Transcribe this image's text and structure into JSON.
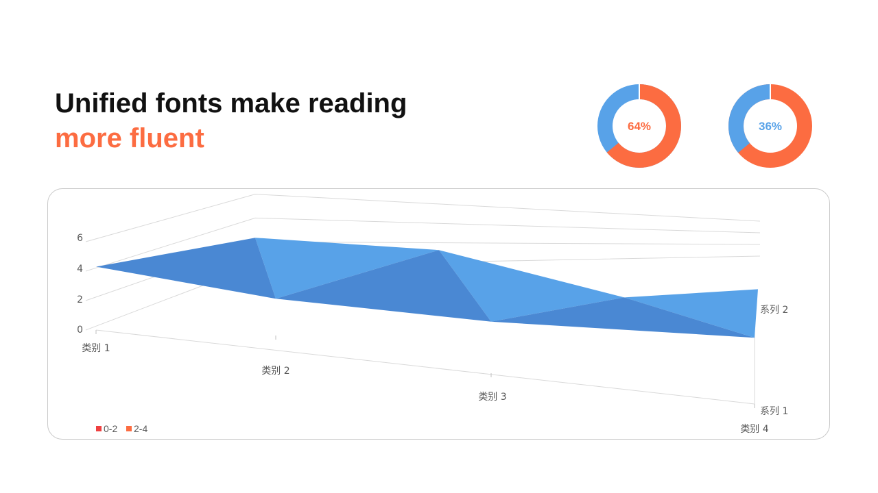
{
  "title": {
    "line1": "Unified fonts make reading",
    "line2": "more fluent"
  },
  "colors": {
    "accent_orange": "#fc6c41",
    "accent_blue": "#58a2e8",
    "series1_blue": "#4a88d3",
    "legend_red": "#ef4040",
    "dark_orange": "#e05d37"
  },
  "donuts": [
    {
      "label": "64%",
      "value": 0.64,
      "label_color": "#fc6c41"
    },
    {
      "label": "36%",
      "value": 0.36,
      "label_color": "#58a2e8"
    }
  ],
  "chart_data": {
    "type": "area",
    "subtype": "3d-surface",
    "categories": [
      "类别 1",
      "类别 2",
      "类别 3",
      "类别 4"
    ],
    "series_axis": [
      "系列 1",
      "系列 2"
    ],
    "z_ticks": [
      "0",
      "2",
      "4",
      "6"
    ],
    "zlim": [
      0,
      6
    ],
    "series": [
      {
        "name": "系列 1",
        "values": [
          4.3,
          2.5,
          3.5,
          4.5
        ]
      },
      {
        "name": "系列 2",
        "values": [
          2.4,
          4.4,
          1.8,
          2.8
        ]
      }
    ],
    "legend": [
      {
        "label": "0-2",
        "color": "#ef4040"
      },
      {
        "label": "2-4",
        "color": "#fc6c41"
      }
    ],
    "legend_position": "bottom-left",
    "grid": true
  }
}
